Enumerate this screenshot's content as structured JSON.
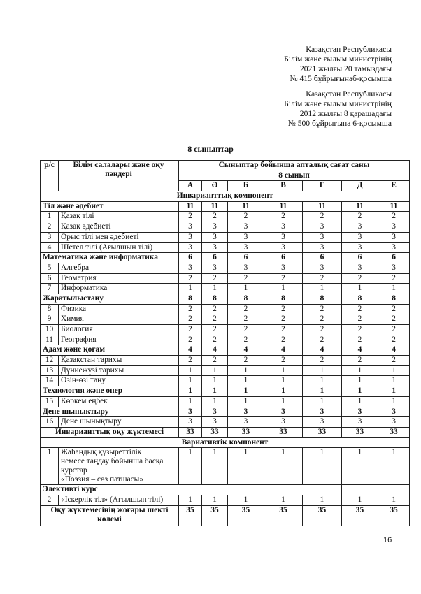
{
  "header_blocks": [
    [
      "Қазақстан Республикасы",
      "Білім және ғылым министрінің",
      "2021 жылғы 20 тамыздағы",
      "№ 415 бұйрығынаб-қосымша"
    ],
    [
      "Қазақстан Республикасы",
      "Білім және ғылым министрінің",
      "2012 жылғы 8 қарашадағы",
      "№ 500 бұйрығына 6-қосымша"
    ]
  ],
  "title": "8    сыныптар",
  "table": {
    "col_num": "р/с",
    "col_subject": "Білім салалары және оқу пәндері",
    "col_hours": "Сыныптар  бойынша апталық сағат саны",
    "grade": "8 сынып",
    "classes": [
      "А",
      "Ә",
      "Б",
      "В",
      "Г",
      "Д",
      "Е"
    ],
    "invariant_label": "Инварианттық  компонент",
    "invariant_rows": [
      {
        "type": "group",
        "name": "Тіл және әдебиет",
        "value": "11"
      },
      {
        "type": "item",
        "n": "1",
        "name": "Қазақ тілі",
        "value": "2"
      },
      {
        "type": "item",
        "n": "2",
        "name": "Қазақ әдебиеті",
        "value": "3"
      },
      {
        "type": "item",
        "n": "3",
        "name": "Орыс тілі мен әдебиеті",
        "value": "3"
      },
      {
        "type": "item",
        "n": "4",
        "name": "Шетел тілі (Ағылшын тілі)",
        "value": "3"
      },
      {
        "type": "group",
        "name": "Математика және информатика",
        "value": "6"
      },
      {
        "type": "item",
        "n": "5",
        "name": "Алгебра",
        "value": "3"
      },
      {
        "type": "item",
        "n": "6",
        "name": "Геометрия",
        "value": "2"
      },
      {
        "type": "item",
        "n": "7",
        "name": "Информатика",
        "value": "1"
      },
      {
        "type": "group",
        "name": "Жаратылыстану",
        "value": "8"
      },
      {
        "type": "item",
        "n": "8",
        "name": "Физика",
        "value": "2"
      },
      {
        "type": "item",
        "n": "9",
        "name": "Химия",
        "value": "2"
      },
      {
        "type": "item",
        "n": "10",
        "name": "Биология",
        "value": "2"
      },
      {
        "type": "item",
        "n": "11",
        "name": "География",
        "value": "2"
      },
      {
        "type": "group",
        "name": "Адам және қоғам",
        "value": "4"
      },
      {
        "type": "item",
        "n": "12",
        "name": "Қазақстан тарихы",
        "value": "2"
      },
      {
        "type": "item",
        "n": "13",
        "name": "Дүниежүзі тарихы",
        "value": "1"
      },
      {
        "type": "item",
        "n": "14",
        "name": "Өзін-өзі тану",
        "value": "1"
      },
      {
        "type": "group",
        "name": "Технология және өнер",
        "value": "1"
      },
      {
        "type": "item",
        "n": "15",
        "name": "Көркем еңбек",
        "value": "1"
      },
      {
        "type": "group",
        "name": "Дене шынықтыру",
        "value": "3"
      },
      {
        "type": "item",
        "n": "16",
        "name": "Дене шынықтыру",
        "value": "3"
      }
    ],
    "invariant_total_label": "Инварианттық  оқу жүктемесі",
    "invariant_total": "33",
    "variative_label": "Вариативтік компонент",
    "variative_item": {
      "n": "1",
      "lines": [
        "Жаһандық құзыреттілік",
        "немесе таңдау бойынша басқа",
        "курстар",
        "«Поэзия – сөз патшасы»"
      ],
      "value": "1"
    },
    "elective_label": "Элективті курс",
    "elective_item": {
      "n": "2",
      "name": "«Іскерлік тіл» (Ағылшын тілі)",
      "value": "1"
    },
    "max_load_label": "Оқу жүктемесінің жоғары шекті көлемі",
    "max_load": "35"
  },
  "page_number": "16"
}
